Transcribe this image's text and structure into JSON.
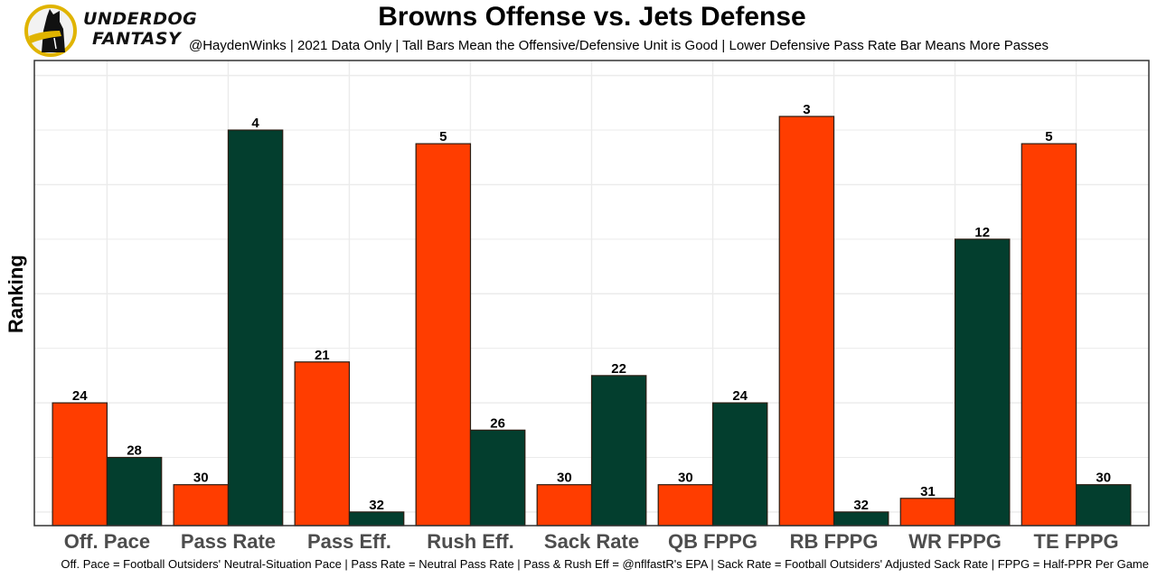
{
  "header": {
    "brand_line1": "UNDERDOG",
    "brand_line2": "FANTASY",
    "logo_icon": "underdog-dog-logo-icon"
  },
  "chart_data": {
    "type": "bar",
    "title": "Browns Offense vs. Jets Defense",
    "subtitle": "@HaydenWinks | 2021 Data Only | Tall Bars Mean the Offensive/Defensive Unit is Good | Lower Defensive Pass Rate Bar Means More Passes",
    "xlabel": "",
    "ylabel": "Ranking",
    "caption": "Off. Pace = Football Outsiders' Neutral-Situation Pace | Pass Rate = Neutral Pass Rate | Pass & Rush Eff = @nflfastR's EPA | Sack Rate = Football Outsiders' Adjusted Sack Rate | FPPG = Half-PPR Per Game",
    "categories": [
      "Off. Pace",
      "Pass Rate",
      "Pass Eff.",
      "Rush Eff.",
      "Sack Rate",
      "QB FPPG",
      "RB FPPG",
      "WR FPPG",
      "TE FPPG"
    ],
    "series": [
      {
        "name": "Browns Offense",
        "color": "#FF3D00",
        "values": [
          24,
          30,
          21,
          5,
          30,
          30,
          3,
          31,
          5
        ]
      },
      {
        "name": "Jets Defense",
        "color": "#033E2E",
        "values": [
          28,
          4,
          32,
          26,
          22,
          24,
          32,
          12,
          30
        ]
      }
    ],
    "bar_height_rule": "33 - ranking",
    "ylim": [
      0,
      34.1
    ],
    "y_gridlines": [
      1,
      5,
      9,
      13,
      17,
      21,
      25,
      29,
      33
    ],
    "y_ticks_shown": false,
    "grid": true,
    "legend": "none"
  }
}
